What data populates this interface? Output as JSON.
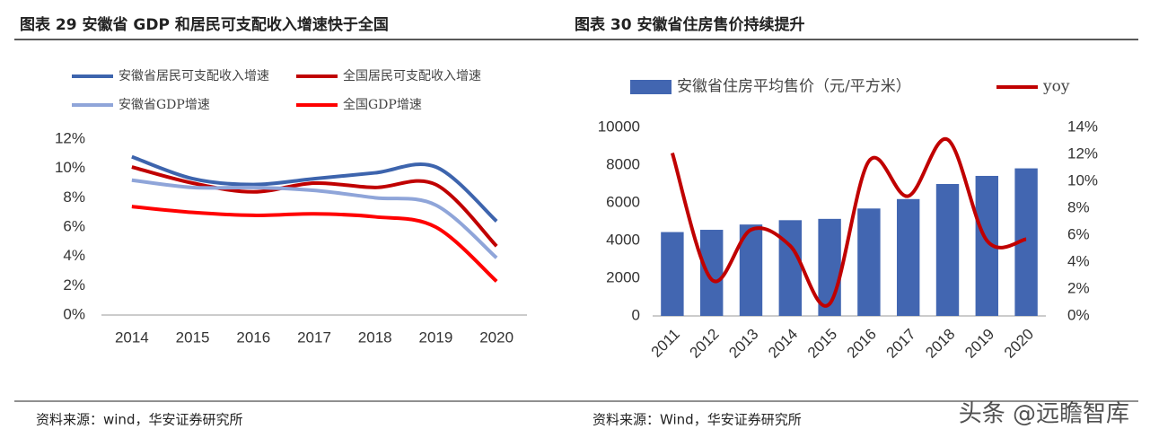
{
  "chart_data": [
    {
      "type": "line",
      "title": "图表 29  安徽省 GDP 和居民可支配收入增速快于全国",
      "categories": [
        "2014",
        "2015",
        "2016",
        "2017",
        "2018",
        "2019",
        "2020"
      ],
      "series": [
        {
          "name": "安徽省居民可支配收入增速",
          "color": "#3d64ad",
          "values": [
            10.8,
            9.3,
            8.9,
            9.3,
            9.7,
            10.1,
            6.4
          ]
        },
        {
          "name": "全国居民可支配收入增速",
          "color": "#c00000",
          "values": [
            10.1,
            9.0,
            8.4,
            9.0,
            8.7,
            8.9,
            4.7
          ]
        },
        {
          "name": "安徽省GDP增速",
          "color": "#8fa5d9",
          "values": [
            9.2,
            8.7,
            8.7,
            8.5,
            8.0,
            7.5,
            3.9
          ]
        },
        {
          "name": "全国GDP增速",
          "color": "#ff0000",
          "values": [
            7.4,
            7.0,
            6.8,
            6.9,
            6.7,
            6.0,
            2.3
          ]
        }
      ],
      "ylim": [
        0,
        12
      ],
      "yticks": [
        {
          "value": 0,
          "label": "0%"
        },
        {
          "value": 2,
          "label": "2%"
        },
        {
          "value": 4,
          "label": "4%"
        },
        {
          "value": 6,
          "label": "6%"
        },
        {
          "value": 8,
          "label": "8%"
        },
        {
          "value": 10,
          "label": "10%"
        },
        {
          "value": 12,
          "label": "12%"
        }
      ],
      "smooth": true,
      "source": "资料来源：wind，华安证券研究所"
    },
    {
      "type": "bar",
      "title": "图表 30  安徽省住房售价持续提升",
      "categories": [
        "2011",
        "2012",
        "2013",
        "2014",
        "2015",
        "2016",
        "2017",
        "2018",
        "2019",
        "2020"
      ],
      "series": [
        {
          "name": "安徽省住房平均售价（元/平方米）",
          "color": "#4266b1",
          "type": "bar",
          "values": [
            4450,
            4570,
            4850,
            5080,
            5150,
            5700,
            6200,
            7000,
            7430,
            7830
          ]
        },
        {
          "name": "yoy",
          "color": "#c00000",
          "type": "line",
          "axis": "y2",
          "values": [
            12.1,
            2.7,
            6.4,
            5.2,
            0.9,
            11.5,
            8.9,
            13.1,
            5.6,
            5.7
          ]
        }
      ],
      "ylim": [
        0,
        10000
      ],
      "yticks": [
        0,
        2000,
        4000,
        6000,
        8000,
        10000
      ],
      "y2lim": [
        0,
        14
      ],
      "y2ticks": [
        {
          "value": 0,
          "label": "0%"
        },
        {
          "value": 2,
          "label": "2%"
        },
        {
          "value": 4,
          "label": "4%"
        },
        {
          "value": 6,
          "label": "6%"
        },
        {
          "value": 8,
          "label": "8%"
        },
        {
          "value": 10,
          "label": "10%"
        },
        {
          "value": 12,
          "label": "12%"
        },
        {
          "value": 14,
          "label": "14%"
        }
      ],
      "smooth": true,
      "source": "资料来源：Wind，华安证券研究所"
    }
  ],
  "watermark": "头条 @远瞻智库"
}
